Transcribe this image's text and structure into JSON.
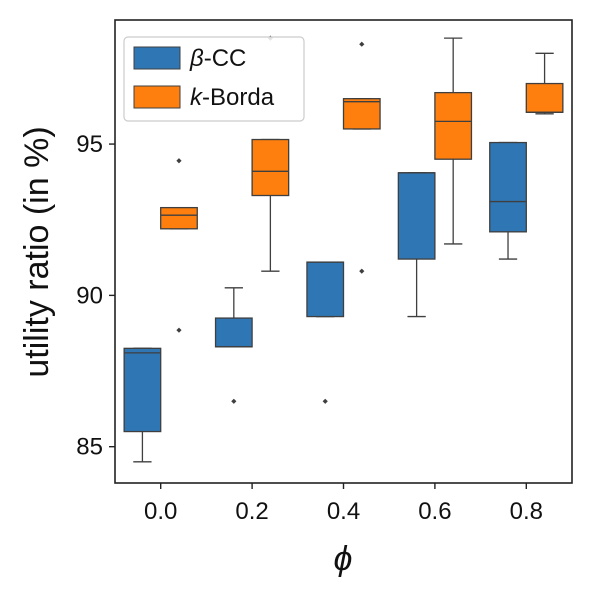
{
  "chart_data": {
    "type": "box",
    "xlabel": "ϕ",
    "ylabel": "utility ratio (in %)",
    "categories": [
      "0.0",
      "0.2",
      "0.4",
      "0.6",
      "0.8"
    ],
    "ylim": [
      83.8,
      99.1
    ],
    "yticks": [
      85,
      90,
      95
    ],
    "grid": false,
    "legend": {
      "position": "top-left",
      "entries": [
        {
          "symbol": "β",
          "suffix": "-CC"
        },
        {
          "symbol": "k",
          "suffix": "-Borda"
        }
      ]
    },
    "series": [
      {
        "color": "#2f77b4",
        "boxes": [
          {
            "whisker_low": 84.5,
            "q1": 85.5,
            "median": 88.1,
            "q3": 88.25,
            "whisker_high": 88.25,
            "outliers": []
          },
          {
            "whisker_low": 88.3,
            "q1": 88.3,
            "median": 88.3,
            "q3": 89.25,
            "whisker_high": 90.25,
            "outliers": [
              86.5
            ]
          },
          {
            "whisker_low": 89.3,
            "q1": 89.3,
            "median": 91.1,
            "q3": 91.1,
            "whisker_high": 91.1,
            "outliers": [
              86.5
            ]
          },
          {
            "whisker_low": 89.3,
            "q1": 91.2,
            "median": 94.05,
            "q3": 94.05,
            "whisker_high": 94.05,
            "outliers": []
          },
          {
            "whisker_low": 91.2,
            "q1": 92.1,
            "median": 93.1,
            "q3": 95.05,
            "whisker_high": 95.05,
            "outliers": []
          }
        ]
      },
      {
        "color": "#ff7f0e",
        "boxes": [
          {
            "whisker_low": 92.2,
            "q1": 92.2,
            "median": 92.65,
            "q3": 92.9,
            "whisker_high": 92.9,
            "outliers": [
              88.85,
              94.45
            ]
          },
          {
            "whisker_low": 90.8,
            "q1": 93.3,
            "median": 94.1,
            "q3": 95.15,
            "whisker_high": 95.15,
            "outliers": [
              98.5
            ]
          },
          {
            "whisker_low": 95.5,
            "q1": 95.5,
            "median": 96.4,
            "q3": 96.5,
            "whisker_high": 96.5,
            "outliers": [
              90.8,
              98.3
            ]
          },
          {
            "whisker_low": 91.7,
            "q1": 94.5,
            "median": 95.75,
            "q3": 96.7,
            "whisker_high": 98.5,
            "outliers": []
          },
          {
            "whisker_low": 96.0,
            "q1": 96.05,
            "median": 96.05,
            "q3": 97.0,
            "whisker_high": 98.0,
            "outliers": []
          }
        ]
      }
    ]
  }
}
